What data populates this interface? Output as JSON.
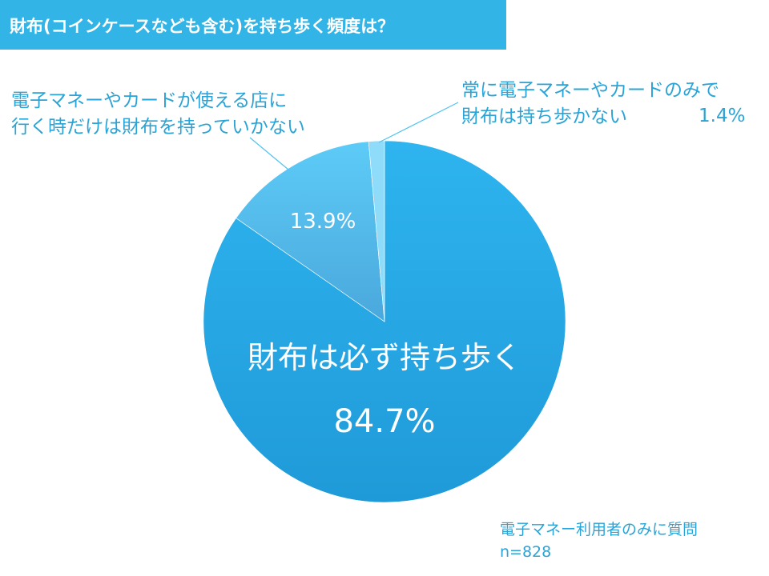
{
  "title": "財布(コインケースなども含む)を持ち歩く頻度は？",
  "chart_data": {
    "type": "pie",
    "title": "財布(コインケースなども含む)を持ち歩く頻度は？",
    "slices": [
      {
        "label": "財布は必ず持ち歩く",
        "label_lines": [
          "財布は必ず持ち歩く"
        ],
        "value": 84.7,
        "value_label": "84.7%",
        "color": "#2eb4ef",
        "color_dark": "#1f9ad8"
      },
      {
        "label": "電子マネーやカードが使える店に行く時だけは財布を持っていかない",
        "label_lines": [
          "電子マネーやカードが使える店に",
          "行く時だけは財布を持っていかない"
        ],
        "value": 13.9,
        "value_label": "13.9%",
        "color": "#5dcbf7",
        "color_dark": "#4aa8dc"
      },
      {
        "label": "常に電子マネーやカードのみで財布は持ち歩かない",
        "label_lines": [
          "常に電子マネーやカードのみで",
          "財布は持ち歩かない"
        ],
        "value": 1.4,
        "value_label": "1.4%",
        "color": "#8fdcfa",
        "color_dark": "#8fdcfa"
      }
    ]
  },
  "footnote": {
    "line1": "電子マネー利用者のみに質問",
    "line2": "n=828"
  },
  "colors": {
    "title_bar": "#32b4e6",
    "label_text": "#2aa3d6",
    "leader_line": "#4fc3f0"
  }
}
